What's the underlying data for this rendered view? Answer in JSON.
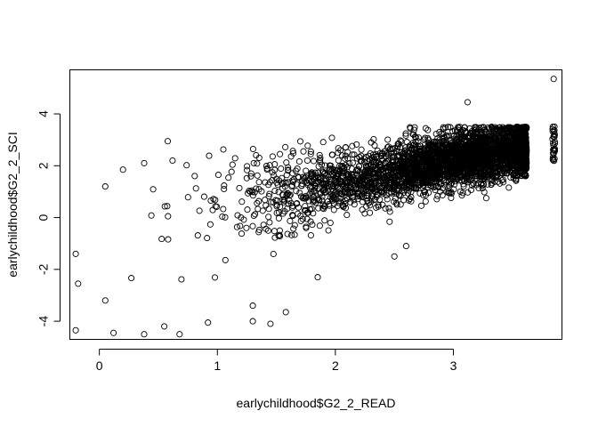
{
  "chart_data": {
    "type": "scatter",
    "title": "",
    "xlabel": "earlychildhood$G2_2_READ",
    "ylabel": "earlychildhood$G2_2_SCI",
    "xlim": [
      -0.25,
      3.92
    ],
    "ylim": [
      -4.7,
      5.7
    ],
    "x_ticks": [
      "0",
      "1",
      "2",
      "3"
    ],
    "y_ticks": [
      "-4",
      "-2",
      "0",
      "2",
      "4"
    ],
    "grid": false,
    "legend": "none",
    "marker": "open-circle",
    "point_color": "#000000",
    "n_points_estimated": 3500,
    "trend": {
      "description": "positive linear association",
      "mean_y_at_x": [
        [
          0,
          -0.4
        ],
        [
          1,
          0.6
        ],
        [
          2,
          1.3
        ],
        [
          3,
          2.2
        ],
        [
          3.6,
          2.7
        ]
      ]
    },
    "x_tail_min": -0.22,
    "x_tail_max": 3.85,
    "y_cap_upper": 3.5,
    "points": [
      {
        "x": 3.85,
        "y": 5.35
      },
      {
        "x": 3.12,
        "y": 4.45
      },
      {
        "x": -0.2,
        "y": -4.35
      },
      {
        "x": 0.12,
        "y": -4.45
      },
      {
        "x": 0.38,
        "y": -4.5
      },
      {
        "x": 0.68,
        "y": -4.5
      },
      {
        "x": 0.55,
        "y": -4.2
      },
      {
        "x": 0.92,
        "y": -4.05
      },
      {
        "x": 1.3,
        "y": -4.0
      },
      {
        "x": 1.45,
        "y": -4.1
      },
      {
        "x": 1.58,
        "y": -3.65
      },
      {
        "x": 1.3,
        "y": -3.4
      },
      {
        "x": 0.05,
        "y": -3.2
      },
      {
        "x": 2.5,
        "y": -1.5
      },
      {
        "x": 2.6,
        "y": -1.1
      },
      {
        "x": 1.85,
        "y": -2.3
      },
      {
        "x": 0.05,
        "y": 1.2
      },
      {
        "x": 0.2,
        "y": 1.85
      },
      {
        "x": 0.38,
        "y": 2.1
      },
      {
        "x": 0.62,
        "y": 2.2
      },
      {
        "x": -0.2,
        "y": -1.4
      },
      {
        "x": -0.18,
        "y": -2.55
      }
    ]
  }
}
